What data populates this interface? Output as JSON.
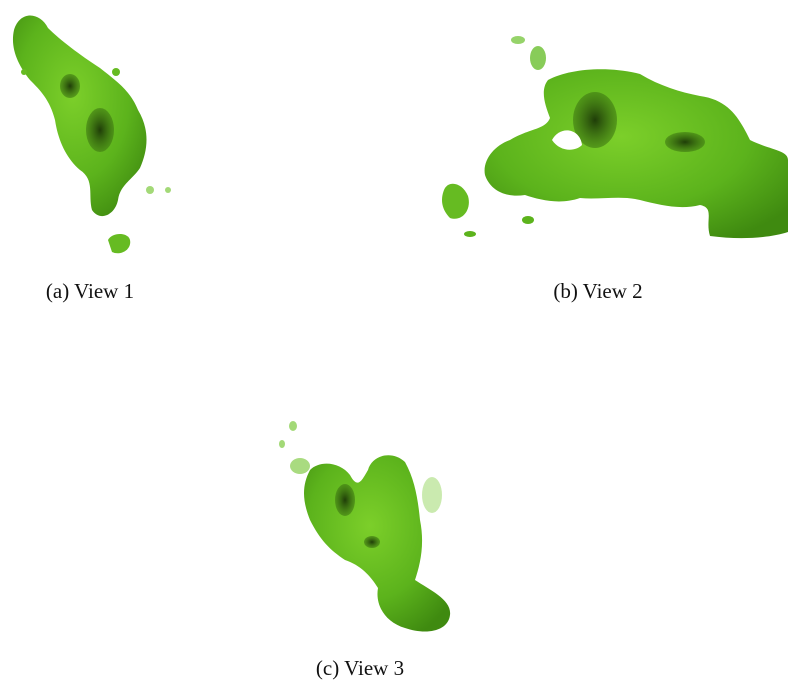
{
  "figure": {
    "panels": [
      {
        "caption": "(a) View 1"
      },
      {
        "caption": "(b) View 2"
      },
      {
        "caption": "(c) View 3"
      }
    ]
  }
}
